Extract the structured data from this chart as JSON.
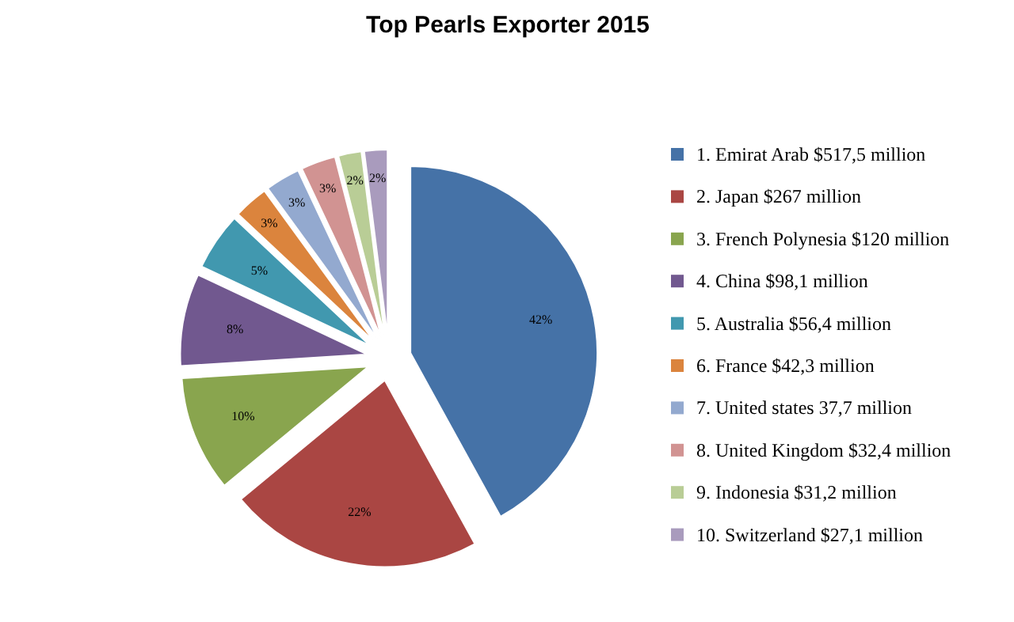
{
  "chart_data": {
    "type": "pie",
    "title": "Top Pearls Exporter 2015",
    "categories": [
      "1. Emirat Arab $517,5 million",
      "2. Japan $267 million",
      "3. French Polynesia $120 million",
      "4. China $98,1 million",
      "5. Australia $56,4 million",
      "6. France $42,3 million",
      "7. United states 37,7 million",
      "8. United Kingdom $32,4 million",
      "9. Indonesia $31,2 million",
      "10. Switzerland $27,1 million"
    ],
    "values": [
      42,
      22,
      10,
      8,
      5,
      3,
      3,
      3,
      2,
      2
    ],
    "value_labels": [
      "42%",
      "22%",
      "10%",
      "8%",
      "5%",
      "3%",
      "3%",
      "3%",
      "2%",
      "2%"
    ],
    "colors": [
      "#4572a7",
      "#aa4643",
      "#89a54e",
      "#71588f",
      "#4198af",
      "#db843d",
      "#93a9cf",
      "#d19392",
      "#b9cd96",
      "#a99bbd"
    ],
    "legend": "right"
  }
}
